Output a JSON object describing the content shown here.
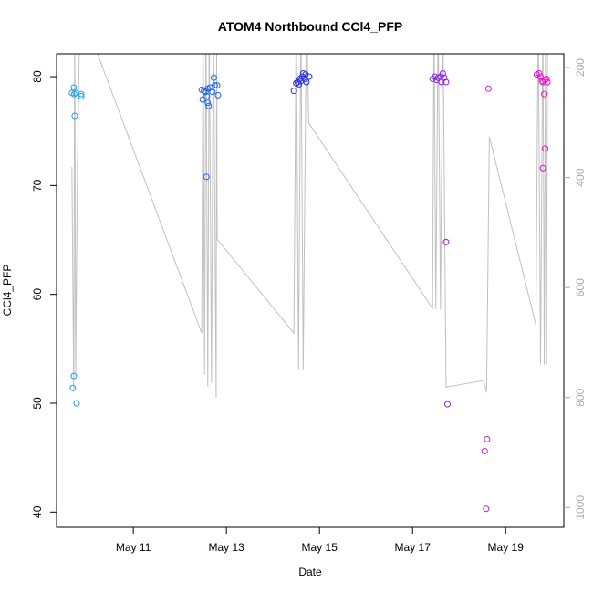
{
  "chart_data": {
    "type": "scatter",
    "title": "ATOM4 Northbound CCl4_PFP",
    "x_label": "Date",
    "y_label": "CCl4_PFP",
    "xlim": [
      9.35,
      20.25
    ],
    "xticks": [
      {
        "value": 11,
        "label": "May 11"
      },
      {
        "value": 13,
        "label": "May 13"
      },
      {
        "value": 15,
        "label": "May 15"
      },
      {
        "value": 17,
        "label": "May 17"
      },
      {
        "value": 19,
        "label": "May 19"
      }
    ],
    "ylim": [
      38.6,
      82.1
    ],
    "yticks": [
      40,
      50,
      60,
      70,
      80
    ],
    "y2lim": [
      1036,
      175
    ],
    "y2ticks": [
      200,
      400,
      600,
      800,
      1000
    ],
    "series": [
      {
        "color": "#1fa0ee",
        "x": [
          9.68,
          9.72,
          9.73,
          9.74,
          9.72,
          9.7,
          9.78,
          9.88,
          9.88,
          9.76
        ],
        "values": [
          78.5,
          79.0,
          78.4,
          76.4,
          52.5,
          51.4,
          50.0,
          78.4,
          78.2,
          78.5
        ]
      },
      {
        "color": "#1e62e6",
        "x": [
          12.49,
          12.47,
          12.52,
          12.55,
          12.58,
          12.6,
          12.62,
          12.57,
          12.65,
          12.7,
          12.73,
          12.75,
          12.8,
          12.82,
          12.6
        ],
        "values": [
          77.9,
          78.8,
          78.7,
          78.6,
          78.2,
          77.6,
          77.3,
          70.8,
          79.0,
          78.6,
          79.9,
          79.2,
          79.2,
          78.3,
          78.9
        ]
      },
      {
        "color": "#2a2ad8",
        "x": [
          14.45,
          14.5,
          14.53,
          14.56,
          14.6,
          14.63,
          14.65,
          14.68,
          14.7,
          14.72,
          14.78,
          14.58
        ],
        "values": [
          78.7,
          79.4,
          79.5,
          79.3,
          79.6,
          80.0,
          80.3,
          79.8,
          80.2,
          79.5,
          80.0,
          79.8
        ]
      },
      {
        "color": "#8a22e4",
        "x": [
          17.43,
          17.48,
          17.52,
          17.55,
          17.6,
          17.62,
          17.65,
          17.68,
          17.72,
          17.72,
          17.75
        ],
        "values": [
          79.8,
          80.0,
          79.7,
          79.9,
          80.0,
          79.5,
          80.3,
          79.9,
          79.5,
          64.8,
          49.9
        ]
      },
      {
        "color": "#c81ee8",
        "x": [
          18.63,
          18.55,
          18.6,
          18.58
        ],
        "values": [
          78.9,
          45.6,
          46.7,
          40.3
        ]
      },
      {
        "color": "#f20ac8",
        "x": [
          19.67,
          19.72,
          19.75,
          19.78,
          19.8,
          19.83,
          19.85,
          19.8,
          19.88,
          19.9,
          19.85
        ],
        "values": [
          80.2,
          80.3,
          80.0,
          79.6,
          79.5,
          78.4,
          73.4,
          71.6,
          79.8,
          79.5,
          79.7
        ]
      },
      {
        "type": "line",
        "axis": "y2",
        "color": "#c0c0c0",
        "x": [
          9.68,
          9.72,
          9.74,
          9.76,
          9.8,
          9.85,
          9.9,
          12.47,
          12.5,
          12.53,
          12.56,
          12.6,
          12.63,
          12.68,
          12.72,
          12.78,
          12.79,
          12.8,
          14.45,
          14.5,
          14.55,
          14.6,
          14.65,
          14.72,
          14.77,
          17.43,
          17.46,
          17.5,
          17.55,
          17.6,
          17.65,
          17.72,
          18.53,
          18.59,
          18.65,
          19.65,
          19.7,
          19.75,
          19.8,
          19.83,
          19.86,
          19.88,
          19.9
        ],
        "values": [
          381,
          790,
          100,
          760,
          380,
          100,
          100,
          683,
          100,
          758,
          100,
          780,
          100,
          773,
          100,
          800,
          100,
          512,
          683,
          100,
          750,
          100,
          750,
          100,
          301,
          638,
          100,
          640,
          100,
          640,
          100,
          781,
          769,
          791,
          326,
          668,
          100,
          740,
          100,
          740,
          100,
          740,
          100
        ]
      }
    ]
  }
}
